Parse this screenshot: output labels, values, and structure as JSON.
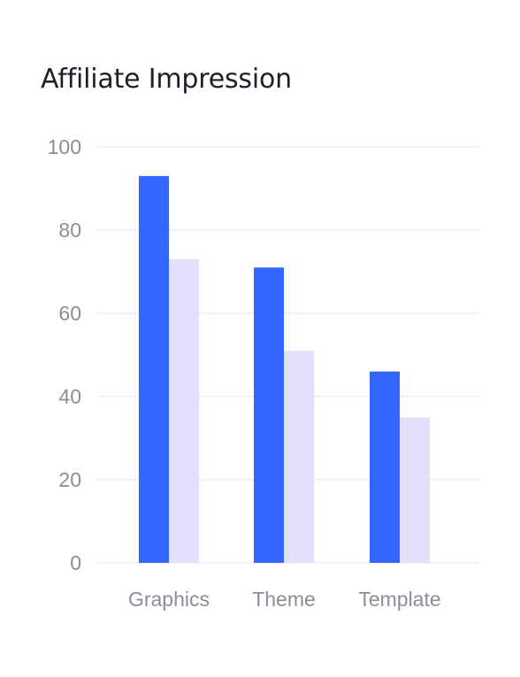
{
  "card": {
    "title": "Affiliate Impression"
  },
  "chart_data": {
    "type": "bar",
    "title": "Affiliate Impression",
    "xlabel": "",
    "ylabel": "",
    "categories": [
      "Graphics",
      "Theme",
      "Template"
    ],
    "series": [
      {
        "values": [
          93,
          71,
          46
        ],
        "color": "#3366ff"
      },
      {
        "values": [
          73,
          51,
          35
        ],
        "color": "#e4e0fb"
      }
    ],
    "ylim": [
      0,
      100
    ],
    "yticks": [
      0,
      20,
      40,
      60,
      80,
      100
    ],
    "grid": true,
    "legend": "none",
    "colors": {
      "grid": "#ececf2",
      "axis_text": "#8d8d99",
      "title": "#1f1f2b"
    }
  }
}
